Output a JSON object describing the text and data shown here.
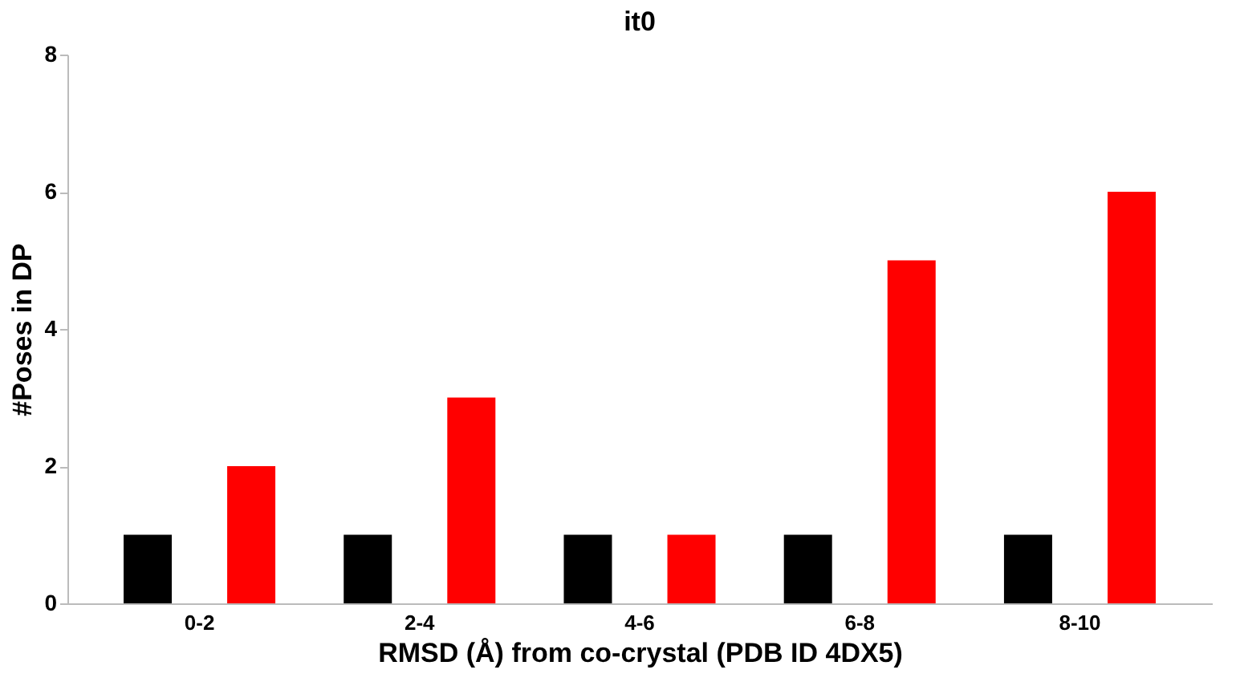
{
  "chart_data": {
    "type": "bar",
    "title": "it0",
    "xlabel": "RMSD (Å) from co-crystal (PDB ID 4DX5)",
    "ylabel": "#Poses in DP",
    "categories": [
      "0-2",
      "2-4",
      "4-6",
      "6-8",
      "8-10"
    ],
    "series": [
      {
        "color": "#000000",
        "values": [
          1,
          1,
          1,
          1,
          1
        ]
      },
      {
        "color": "#ff0000",
        "values": [
          2,
          3,
          1,
          5,
          6
        ]
      }
    ],
    "ylim": [
      0,
      8
    ],
    "yticks": [
      0,
      2,
      4,
      6,
      8
    ],
    "grid": false
  }
}
